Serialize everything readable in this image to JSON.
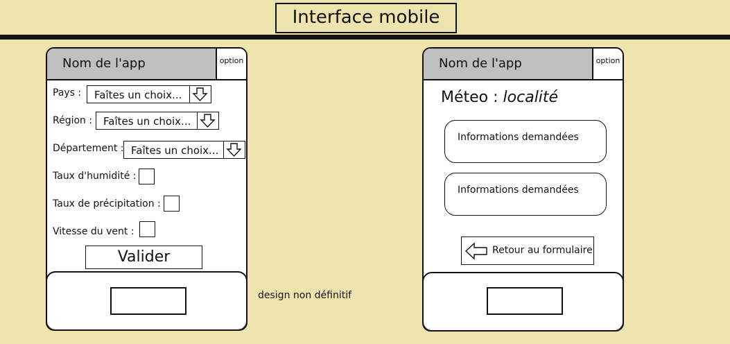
{
  "page_title": "Interface mobile",
  "note": "design non définitif",
  "form_screen": {
    "app_name": "Nom de l'app",
    "option_label": "option",
    "fields": {
      "pays_label": "Pays :",
      "region_label": "Région :",
      "departement_label": "Département :",
      "select_placeholder": "Faîtes un choix...",
      "humidite_label": "Taux d'humidité :",
      "precipitation_label": "Taux de précipitation :",
      "vent_label": "Vitesse du vent :"
    },
    "validate_label": "Valider"
  },
  "result_screen": {
    "app_name": "Nom de l'app",
    "option_label": "option",
    "meteo_prefix": "Méteo :",
    "meteo_location": "localité",
    "info_1": "Informations demandées",
    "info_2": "Informations demandées",
    "back_label": "Retour au formulaire"
  },
  "colors": {
    "background": "#efe3ae",
    "header": "#c0c0c0",
    "outline": "#111111"
  },
  "icons": [
    "down-arrow-icon",
    "left-arrow-icon"
  ]
}
